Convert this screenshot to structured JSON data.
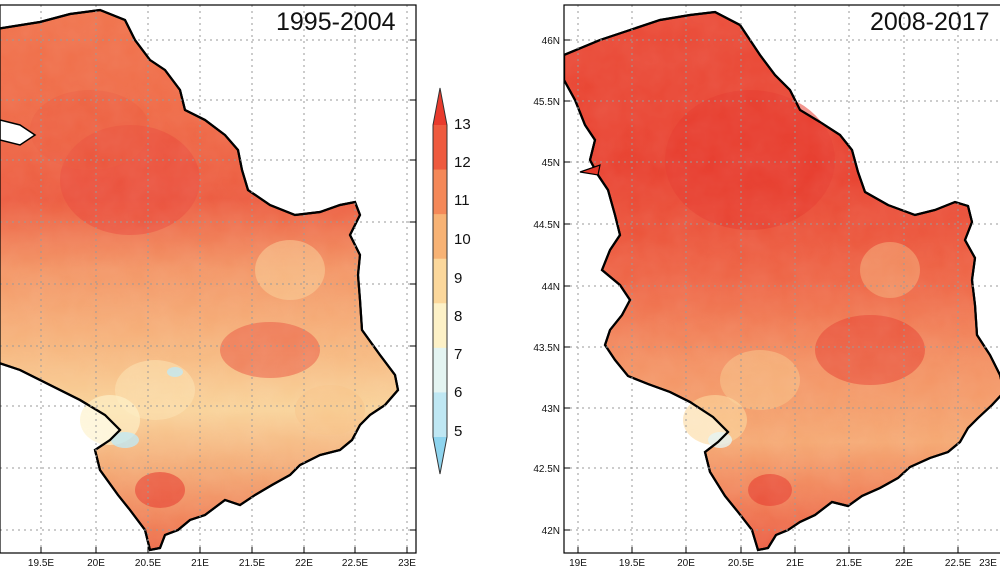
{
  "maps": [
    {
      "title": "1995-2004",
      "x_ticks": [
        "19.5E",
        "20E",
        "20.5E",
        "21E",
        "21.5E",
        "22E",
        "22.5E",
        "23E"
      ],
      "y_ticks": []
    },
    {
      "title": "2008-2017",
      "x_ticks": [
        "19E",
        "19.5E",
        "20E",
        "20.5E",
        "21E",
        "21.5E",
        "22E",
        "22.5E",
        "23E"
      ],
      "y_ticks": [
        "46N",
        "45.5N",
        "45N",
        "44.5N",
        "44N",
        "43.5N",
        "43N",
        "42.5N",
        "42N"
      ]
    }
  ],
  "colorbar": {
    "labels": [
      "13",
      "12",
      "11",
      "10",
      "9",
      "8",
      "7",
      "6",
      "5"
    ],
    "colors": [
      "#e83a2c",
      "#ee5a3e",
      "#f48858",
      "#f7b274",
      "#fbd79b",
      "#fdf1c7",
      "#e4f4f2",
      "#bfe7f3",
      "#8ed4ee"
    ]
  },
  "palette": {
    "frame": "#000000",
    "grid": "#9a9a9a"
  }
}
